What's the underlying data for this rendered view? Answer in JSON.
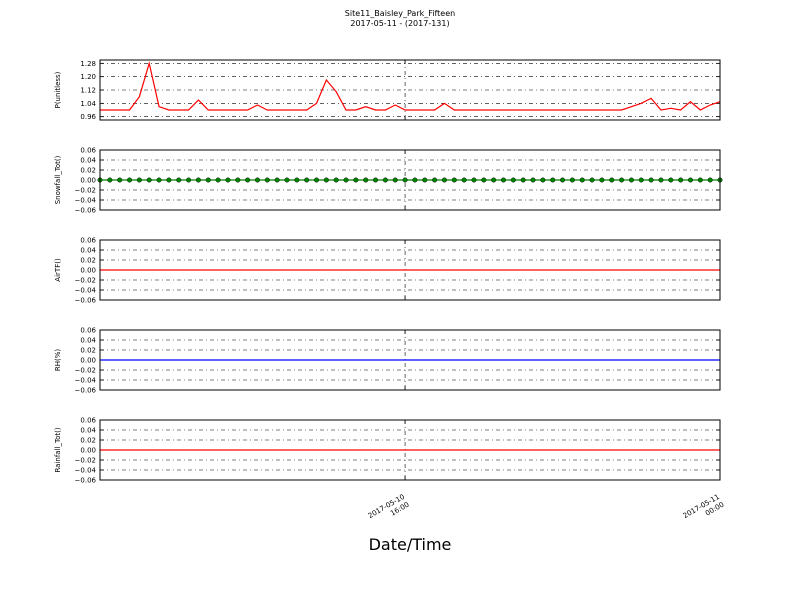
{
  "chart_data": {
    "title": "Site11_Baisley_Park_Fifteen",
    "subtitle": "2017-05-11 - (2017-131)",
    "xlabel": "Date/Time",
    "x": [
      "2017-05-10 08:15",
      "2017-05-10 08:30",
      "2017-05-10 08:45",
      "2017-05-10 09:00",
      "2017-05-10 09:15",
      "2017-05-10 09:30",
      "2017-05-10 09:45",
      "2017-05-10 10:00",
      "2017-05-10 10:15",
      "2017-05-10 10:30",
      "2017-05-10 10:45",
      "2017-05-10 11:00",
      "2017-05-10 11:15",
      "2017-05-10 11:30",
      "2017-05-10 11:45",
      "2017-05-10 12:00",
      "2017-05-10 12:15",
      "2017-05-10 12:30",
      "2017-05-10 12:45",
      "2017-05-10 13:00",
      "2017-05-10 13:15",
      "2017-05-10 13:30",
      "2017-05-10 13:45",
      "2017-05-10 14:00",
      "2017-05-10 14:15",
      "2017-05-10 14:30",
      "2017-05-10 14:45",
      "2017-05-10 15:00",
      "2017-05-10 15:15",
      "2017-05-10 15:30",
      "2017-05-10 15:45",
      "2017-05-10 16:00",
      "2017-05-10 16:15",
      "2017-05-10 16:30",
      "2017-05-10 16:45",
      "2017-05-10 17:00",
      "2017-05-10 17:15",
      "2017-05-10 17:30",
      "2017-05-10 17:45",
      "2017-05-10 18:00",
      "2017-05-10 18:15",
      "2017-05-10 18:30",
      "2017-05-10 18:45",
      "2017-05-10 19:00",
      "2017-05-10 19:15",
      "2017-05-10 19:30",
      "2017-05-10 19:45",
      "2017-05-10 20:00",
      "2017-05-10 20:15",
      "2017-05-10 20:30",
      "2017-05-10 20:45",
      "2017-05-10 21:00",
      "2017-05-10 21:15",
      "2017-05-10 21:30",
      "2017-05-10 21:45",
      "2017-05-10 22:00",
      "2017-05-10 22:15",
      "2017-05-10 22:30",
      "2017-05-10 22:45",
      "2017-05-10 23:00",
      "2017-05-10 23:15",
      "2017-05-10 23:30",
      "2017-05-10 23:45",
      "2017-05-11 00:00"
    ],
    "xlim": [
      "2017-05-10 08:15",
      "2017-05-11 00:00"
    ],
    "xticks": [
      "2017-05-10 16:00",
      "2017-05-11 00:00"
    ],
    "grid": true,
    "panels": [
      {
        "type": "line",
        "ylabel": "P(unitless)",
        "color": "#ff0000",
        "marker": false,
        "ylim": [
          0.94,
          1.3
        ],
        "yticks": [
          {
            "value": 0.96,
            "label": "0.96"
          },
          1.04,
          1.12,
          {
            "value": 1.2,
            "label": "1.20"
          },
          1.28
        ],
        "values": [
          1.0,
          1.0,
          1.0,
          1.0,
          1.08,
          1.28,
          1.02,
          1.0,
          1.0,
          1.0,
          1.06,
          1.0,
          1.0,
          1.0,
          1.0,
          1.0,
          1.03,
          1.0,
          1.0,
          1.0,
          1.0,
          1.0,
          1.04,
          1.18,
          1.11,
          1.0,
          1.0,
          1.02,
          1.0,
          1.0,
          1.03,
          1.0,
          1.0,
          1.0,
          1.0,
          1.04,
          1.0,
          1.0,
          1.0,
          1.0,
          1.0,
          1.0,
          1.0,
          1.0,
          1.0,
          1.0,
          1.0,
          1.0,
          1.0,
          1.0,
          1.0,
          1.0,
          1.0,
          1.0,
          1.02,
          1.04,
          1.07,
          1.0,
          1.01,
          1.0,
          1.05,
          1.0,
          1.03,
          1.05
        ]
      },
      {
        "type": "line",
        "ylabel": "Snowfall_Tot()",
        "color": "#008000",
        "marker": true,
        "ylim": [
          -0.06,
          0.06
        ],
        "yticks": [
          {
            "value": -0.06,
            "label": "−0.06"
          },
          {
            "value": -0.04,
            "label": "−0.04"
          },
          {
            "value": -0.02,
            "label": "−0.02"
          },
          {
            "value": 0,
            "label": "0.00"
          },
          0.02,
          0.04,
          0.06
        ],
        "values": [
          0,
          0,
          0,
          0,
          0,
          0,
          0,
          0,
          0,
          0,
          0,
          0,
          0,
          0,
          0,
          0,
          0,
          0,
          0,
          0,
          0,
          0,
          0,
          0,
          0,
          0,
          0,
          0,
          0,
          0,
          0,
          0,
          0,
          0,
          0,
          0,
          0,
          0,
          0,
          0,
          0,
          0,
          0,
          0,
          0,
          0,
          0,
          0,
          0,
          0,
          0,
          0,
          0,
          0,
          0,
          0,
          0,
          0,
          0,
          0,
          0,
          0,
          0,
          0
        ]
      },
      {
        "type": "line",
        "ylabel": "AirTF()",
        "color": "#ff0000",
        "marker": false,
        "ylim": [
          -0.06,
          0.06
        ],
        "yticks": [
          {
            "value": -0.06,
            "label": "−0.06"
          },
          {
            "value": -0.04,
            "label": "−0.04"
          },
          {
            "value": -0.02,
            "label": "−0.02"
          },
          {
            "value": 0,
            "label": "0.00"
          },
          0.02,
          0.04,
          0.06
        ],
        "values": [
          0,
          0,
          0,
          0,
          0,
          0,
          0,
          0,
          0,
          0,
          0,
          0,
          0,
          0,
          0,
          0,
          0,
          0,
          0,
          0,
          0,
          0,
          0,
          0,
          0,
          0,
          0,
          0,
          0,
          0,
          0,
          0,
          0,
          0,
          0,
          0,
          0,
          0,
          0,
          0,
          0,
          0,
          0,
          0,
          0,
          0,
          0,
          0,
          0,
          0,
          0,
          0,
          0,
          0,
          0,
          0,
          0,
          0,
          0,
          0,
          0,
          0,
          0,
          0
        ]
      },
      {
        "type": "line",
        "ylabel": "RH(%)",
        "color": "#0000ff",
        "marker": false,
        "ylim": [
          -0.06,
          0.06
        ],
        "yticks": [
          {
            "value": -0.06,
            "label": "−0.06"
          },
          {
            "value": -0.04,
            "label": "−0.04"
          },
          {
            "value": -0.02,
            "label": "−0.02"
          },
          {
            "value": 0,
            "label": "0.00"
          },
          0.02,
          0.04,
          0.06
        ],
        "values": [
          0,
          0,
          0,
          0,
          0,
          0,
          0,
          0,
          0,
          0,
          0,
          0,
          0,
          0,
          0,
          0,
          0,
          0,
          0,
          0,
          0,
          0,
          0,
          0,
          0,
          0,
          0,
          0,
          0,
          0,
          0,
          0,
          0,
          0,
          0,
          0,
          0,
          0,
          0,
          0,
          0,
          0,
          0,
          0,
          0,
          0,
          0,
          0,
          0,
          0,
          0,
          0,
          0,
          0,
          0,
          0,
          0,
          0,
          0,
          0,
          0,
          0,
          0,
          0
        ]
      },
      {
        "type": "line",
        "ylabel": "Rainfall_Tot()",
        "color": "#ff0000",
        "marker": false,
        "ylim": [
          -0.06,
          0.06
        ],
        "yticks": [
          {
            "value": -0.06,
            "label": "−0.06"
          },
          {
            "value": -0.04,
            "label": "−0.04"
          },
          {
            "value": -0.02,
            "label": "−0.02"
          },
          {
            "value": 0,
            "label": "0.00"
          },
          0.02,
          0.04,
          0.06
        ],
        "values": [
          0,
          0,
          0,
          0,
          0,
          0,
          0,
          0,
          0,
          0,
          0,
          0,
          0,
          0,
          0,
          0,
          0,
          0,
          0,
          0,
          0,
          0,
          0,
          0,
          0,
          0,
          0,
          0,
          0,
          0,
          0,
          0,
          0,
          0,
          0,
          0,
          0,
          0,
          0,
          0,
          0,
          0,
          0,
          0,
          0,
          0,
          0,
          0,
          0,
          0,
          0,
          0,
          0,
          0,
          0,
          0,
          0,
          0,
          0,
          0,
          0,
          0,
          0,
          0
        ]
      }
    ]
  }
}
